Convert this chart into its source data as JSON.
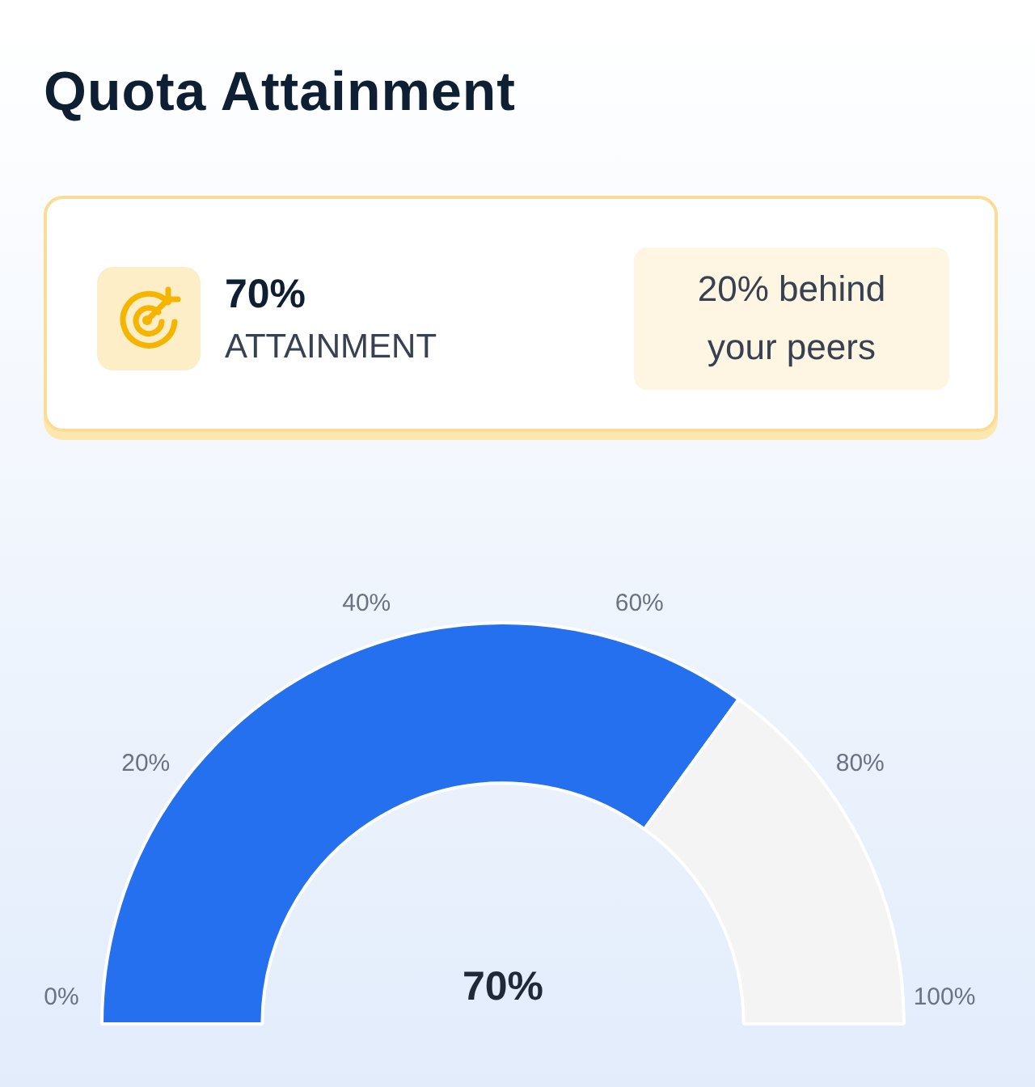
{
  "chart_data": {
    "type": "donut",
    "title": "Quota Attainment",
    "categories": [
      null,
      null
    ],
    "values": [
      70,
      30
    ],
    "colors": [
      "#2570ef",
      "#f4f4f4"
    ],
    "annotations": [
      "70%",
      "ATTAINMENT",
      "20% behind your peers",
      "70%",
      "0%",
      "20%",
      "40%",
      "60%",
      "80%",
      "100%"
    ]
  }
}
